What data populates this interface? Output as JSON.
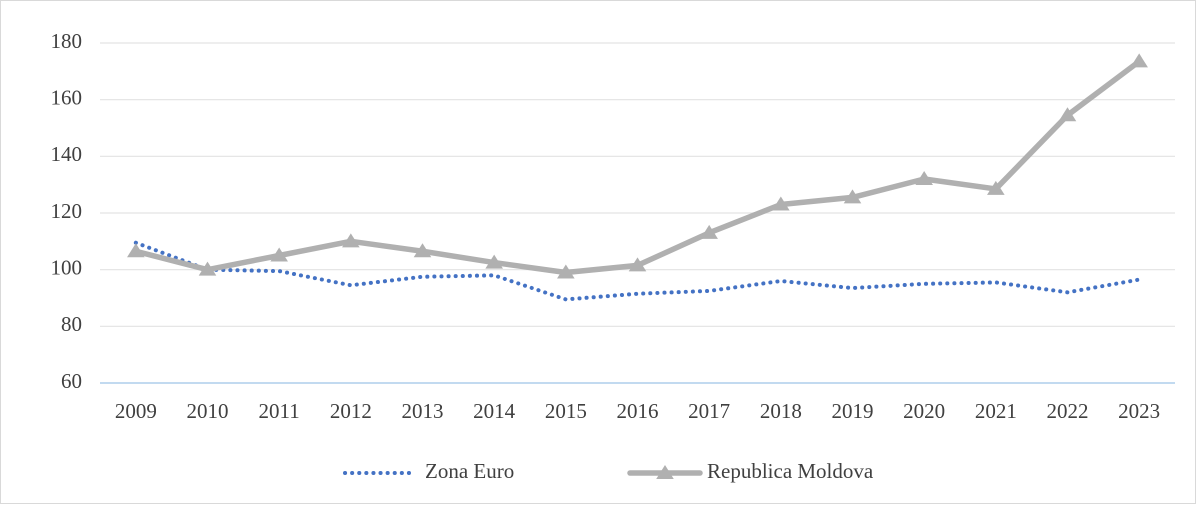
{
  "chart_data": {
    "type": "line",
    "categories": [
      "2009",
      "2010",
      "2011",
      "2012",
      "2013",
      "2014",
      "2015",
      "2016",
      "2017",
      "2018",
      "2019",
      "2020",
      "2021",
      "2022",
      "2023"
    ],
    "series": [
      {
        "name": "Zona Euro",
        "color": "#4472c4",
        "values": [
          109.5,
          100,
          99.5,
          94.5,
          97.5,
          98,
          89.5,
          91.5,
          92.5,
          96,
          93.5,
          95,
          95.5,
          92,
          96.5
        ]
      },
      {
        "name": "Republica Moldova",
        "color": "#b0b0b0",
        "values": [
          106.5,
          100,
          105,
          110,
          106.5,
          102.5,
          99,
          101.5,
          113,
          123,
          125.5,
          132,
          128.5,
          154.5,
          173.5
        ]
      }
    ],
    "ylim": [
      60,
      180
    ],
    "yticks": [
      60,
      80,
      100,
      120,
      140,
      160,
      180
    ],
    "grid": true,
    "legend": "bottom"
  }
}
